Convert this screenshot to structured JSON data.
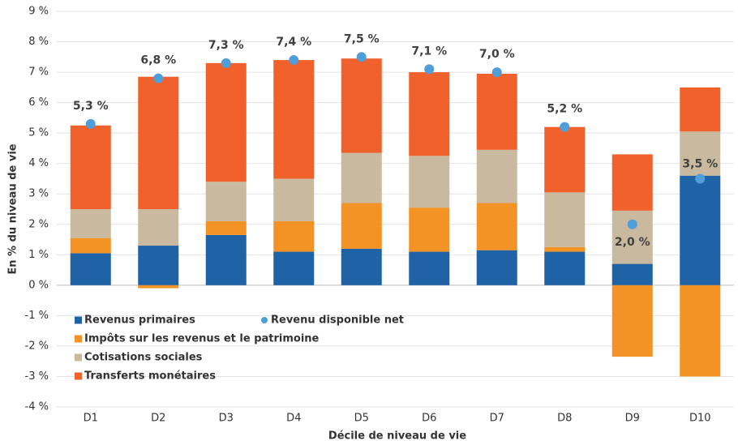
{
  "chart_data": {
    "type": "bar",
    "stacked": true,
    "x_label": "Décile de niveau de vie",
    "y_label": "En % du niveau de vie",
    "categories": [
      "D1",
      "D2",
      "D3",
      "D4",
      "D5",
      "D6",
      "D7",
      "D8",
      "D9",
      "D10"
    ],
    "ylim": [
      -4,
      9
    ],
    "yticks": [
      {
        "value": -4,
        "label": "-4 %"
      },
      {
        "value": -3,
        "label": "-3 %"
      },
      {
        "value": -2,
        "label": "-2 %"
      },
      {
        "value": -1,
        "label": "-1 %"
      },
      {
        "value": 0,
        "label": "0 %"
      },
      {
        "value": 1,
        "label": "1 %"
      },
      {
        "value": 2,
        "label": "2 %"
      },
      {
        "value": 3,
        "label": "3 %"
      },
      {
        "value": 4,
        "label": "4 %"
      },
      {
        "value": 5,
        "label": "5 %"
      },
      {
        "value": 6,
        "label": "6 %"
      },
      {
        "value": 7,
        "label": "7 %"
      },
      {
        "value": 8,
        "label": "8 %"
      },
      {
        "value": 9,
        "label": "9 %"
      }
    ],
    "grid": true,
    "series": [
      {
        "name": "Revenus primaires",
        "color": "#1f62a6",
        "values": [
          1.05,
          1.3,
          1.65,
          1.1,
          1.2,
          1.1,
          1.15,
          1.1,
          0.7,
          3.6
        ]
      },
      {
        "name": "Impôts sur les revenus et le patrimoine",
        "color": "#f39325",
        "values": [
          0.5,
          -0.1,
          0.45,
          1.0,
          1.5,
          1.45,
          1.55,
          0.15,
          -2.35,
          -3.0
        ]
      },
      {
        "name": "Cotisations sociales",
        "color": "#c9b99e",
        "values": [
          0.95,
          1.2,
          1.3,
          1.4,
          1.65,
          1.7,
          1.75,
          1.8,
          1.75,
          1.45
        ]
      },
      {
        "name": "Transferts monétaires",
        "color": "#f0612c",
        "values": [
          2.75,
          4.35,
          3.9,
          3.9,
          3.1,
          2.75,
          2.5,
          2.15,
          1.85,
          1.45
        ]
      },
      {
        "name": "Revenu disponible net",
        "type": "scatter",
        "color": "#4f9ed9",
        "values": [
          5.3,
          6.8,
          7.3,
          7.4,
          7.5,
          7.1,
          7.0,
          5.2,
          2.0,
          3.5
        ],
        "value_labels": [
          "5,3 %",
          "6,8 %",
          "7,3 %",
          "7,4 %",
          "7,5 %",
          "7,1 %",
          "7,0 %",
          "5,2 %",
          "2,0 %",
          "3,5 %"
        ]
      }
    ]
  }
}
